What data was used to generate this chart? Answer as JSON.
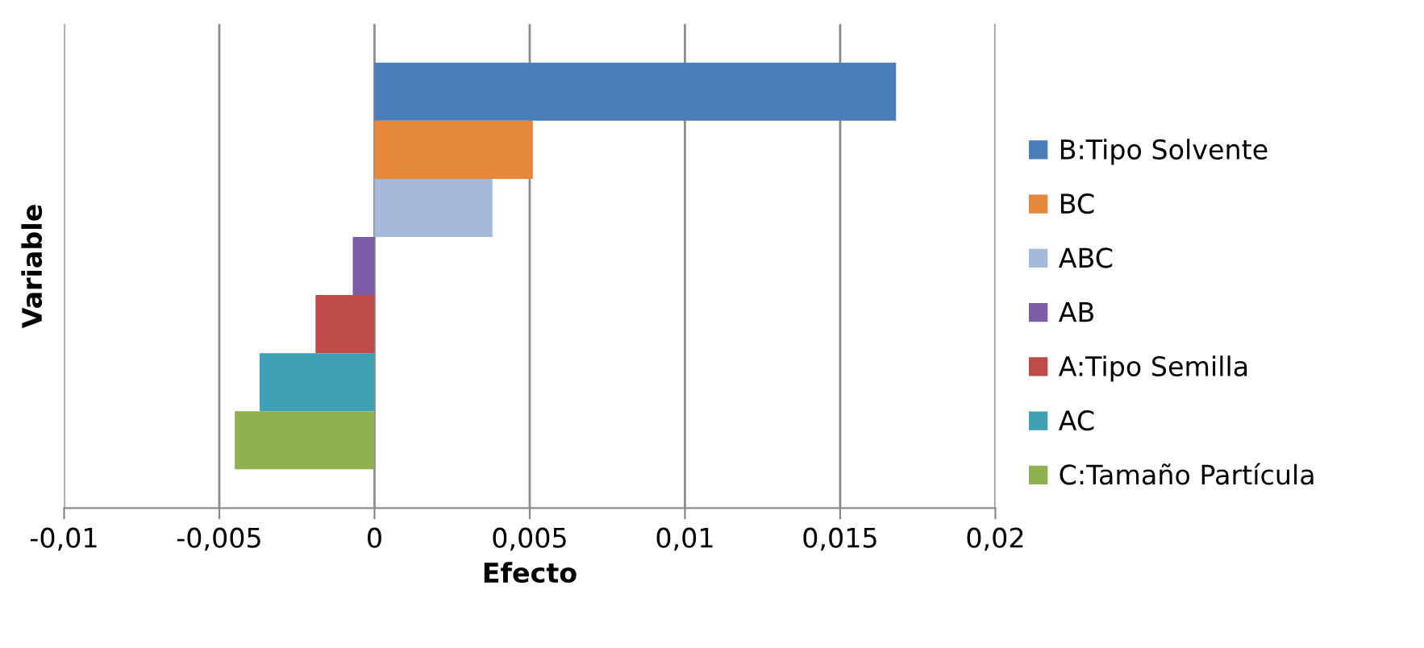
{
  "chart_data": {
    "type": "bar",
    "orientation": "horizontal",
    "xlabel": "Efecto",
    "ylabel": "Variable",
    "categories": [
      null
    ],
    "series": [
      {
        "name": "B:Tipo Solvente",
        "color": "#4a7ebb",
        "values": [
          0.0168
        ]
      },
      {
        "name": "BC",
        "color": "#e6883c",
        "values": [
          0.0051
        ]
      },
      {
        "name": "ABC",
        "color": "#a5b9db",
        "values": [
          0.0038
        ]
      },
      {
        "name": "AB",
        "color": "#7b5ea7",
        "values": [
          -0.0007
        ]
      },
      {
        "name": "A:Tipo Semilla",
        "color": "#be4b48",
        "values": [
          -0.0019
        ]
      },
      {
        "name": "AC",
        "color": "#3e9fb5",
        "values": [
          -0.0037
        ]
      },
      {
        "name": "C:Tamaño Partícula",
        "color": "#8fb151",
        "values": [
          -0.0045
        ]
      }
    ],
    "xlim": [
      -0.01,
      0.02
    ],
    "xticks": [
      {
        "value": -0.01,
        "label": "-0,01"
      },
      {
        "value": -0.005,
        "label": "-0,005"
      },
      {
        "value": 0,
        "label": "0"
      },
      {
        "value": 0.005,
        "label": "0,005"
      },
      {
        "value": 0.01,
        "label": "0,01"
      },
      {
        "value": 0.015,
        "label": "0,015"
      },
      {
        "value": 0.02,
        "label": "0,02"
      }
    ],
    "grid": "x",
    "legend": "right"
  }
}
